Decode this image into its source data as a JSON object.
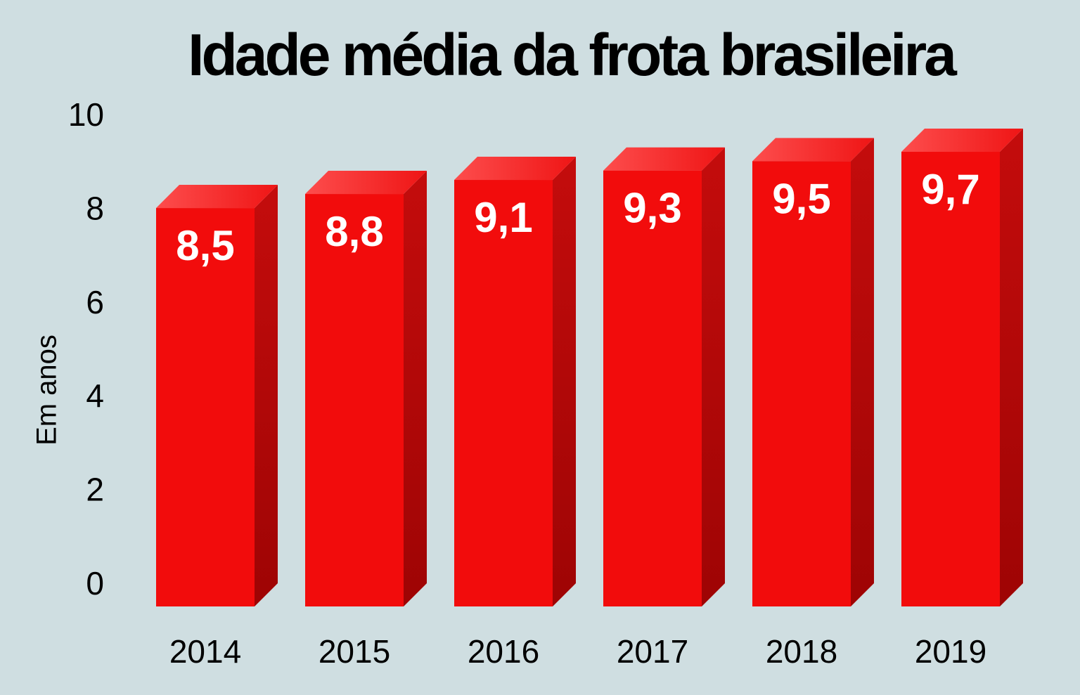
{
  "title": "Idade média da frota brasileira",
  "chart_data": {
    "type": "bar",
    "style": "3d-column",
    "title": "Idade média da frota brasileira",
    "categories": [
      "2014",
      "2015",
      "2016",
      "2017",
      "2018",
      "2019"
    ],
    "values": [
      8.5,
      8.8,
      9.1,
      9.3,
      9.5,
      9.7
    ],
    "value_labels": [
      "8,5",
      "8,8",
      "9,1",
      "9,3",
      "9,5",
      "9,7"
    ],
    "xlabel": "",
    "ylabel": "Em anos",
    "ylim": [
      0,
      10
    ],
    "yticks": [
      "0",
      "2",
      "4",
      "6",
      "8",
      "10"
    ],
    "grid": false,
    "legend": false,
    "axis_lines": false,
    "colors": {
      "background": "#cfdee1",
      "bar_front": "#f20c0c",
      "bar_top_light": "#fd4d4d",
      "bar_top_dark": "#ef1515",
      "bar_side_top": "#c40c0c",
      "bar_side_bottom": "#9e0404",
      "value_label": "#ffffff",
      "axis_text": "#000000",
      "title_text": "#000000"
    }
  }
}
